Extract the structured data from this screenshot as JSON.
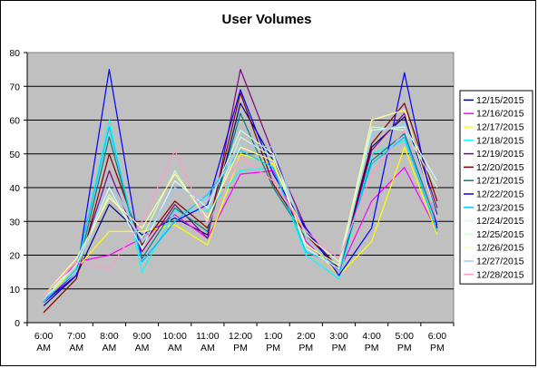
{
  "chart_data": {
    "type": "line",
    "title": "User Volumes",
    "xlabel": "",
    "ylabel": "",
    "ylim": [
      0,
      80
    ],
    "yticks": [
      0,
      10,
      20,
      30,
      40,
      50,
      60,
      70,
      80
    ],
    "grid": true,
    "legend_position": "right",
    "plot_background": "#c0c0c0",
    "categories": [
      [
        "6:00",
        "AM"
      ],
      [
        "7:00",
        "AM"
      ],
      [
        "8:00",
        "AM"
      ],
      [
        "9:00",
        "AM"
      ],
      [
        "10:00",
        "AM"
      ],
      [
        "11:00",
        "AM"
      ],
      [
        "12:00",
        "PM"
      ],
      [
        "1:00",
        "PM"
      ],
      [
        "2:00",
        "PM"
      ],
      [
        "3:00",
        "PM"
      ],
      [
        "4:00",
        "PM"
      ],
      [
        "5:00",
        "PM"
      ],
      [
        "6:00",
        "PM"
      ]
    ],
    "series": [
      {
        "name": "12/15/2015",
        "color": "#000080",
        "values": [
          5,
          14,
          35,
          26,
          31,
          26,
          65,
          48,
          27,
          16,
          52,
          61,
          32
        ]
      },
      {
        "name": "12/16/2015",
        "color": "#ff00ff",
        "values": [
          6,
          18,
          20,
          25,
          32,
          25,
          44,
          45,
          24,
          15,
          36,
          46,
          27
        ]
      },
      {
        "name": "12/17/2015",
        "color": "#ffff00",
        "values": [
          7,
          16,
          27,
          27,
          29,
          23,
          50,
          47,
          25,
          14,
          24,
          52,
          26
        ]
      },
      {
        "name": "12/18/2015",
        "color": "#00ffff",
        "values": [
          7,
          15,
          60,
          15,
          33,
          33,
          45,
          46,
          20,
          13,
          50,
          54,
          30
        ]
      },
      {
        "name": "12/19/2015",
        "color": "#800080",
        "values": [
          6,
          15,
          45,
          21,
          35,
          25,
          75,
          50,
          28,
          15,
          51,
          62,
          34
        ]
      },
      {
        "name": "12/20/2015",
        "color": "#800000",
        "values": [
          3,
          13,
          50,
          23,
          36,
          28,
          68,
          41,
          26,
          16,
          53,
          65,
          36
        ]
      },
      {
        "name": "12/21/2015",
        "color": "#008080",
        "values": [
          6,
          14,
          55,
          19,
          34,
          27,
          62,
          40,
          25,
          15,
          48,
          56,
          29
        ]
      },
      {
        "name": "12/22/2015",
        "color": "#0000ff",
        "values": [
          6,
          14,
          75,
          18,
          30,
          35,
          69,
          44,
          28,
          14,
          28,
          74,
          28
        ]
      },
      {
        "name": "12/23/2015",
        "color": "#00ccff",
        "values": [
          6,
          16,
          58,
          18,
          30,
          38,
          51,
          46,
          21,
          17,
          47,
          55,
          27
        ]
      },
      {
        "name": "12/24/2015",
        "color": "#ccffff",
        "values": [
          8,
          17,
          40,
          22,
          42,
          34,
          57,
          50,
          22,
          16,
          57,
          58,
          42
        ]
      },
      {
        "name": "12/25/2015",
        "color": "#ccffcc",
        "values": [
          7,
          17,
          38,
          25,
          45,
          30,
          55,
          49,
          26,
          18,
          58,
          57,
          40
        ]
      },
      {
        "name": "12/26/2015",
        "color": "#ffff99",
        "values": [
          8,
          19,
          37,
          28,
          44,
          31,
          52,
          48,
          23,
          17,
          60,
          63,
          31
        ]
      },
      {
        "name": "12/27/2015",
        "color": "#99ccff",
        "values": [
          7,
          15,
          43,
          24,
          40,
          36,
          53,
          52,
          25,
          15,
          56,
          59,
          31
        ]
      },
      {
        "name": "12/28/2015",
        "color": "#ff99cc",
        "values": [
          8,
          18,
          16,
          30,
          51,
          29,
          49,
          42,
          27,
          19,
          44,
          57,
          30
        ]
      }
    ]
  }
}
